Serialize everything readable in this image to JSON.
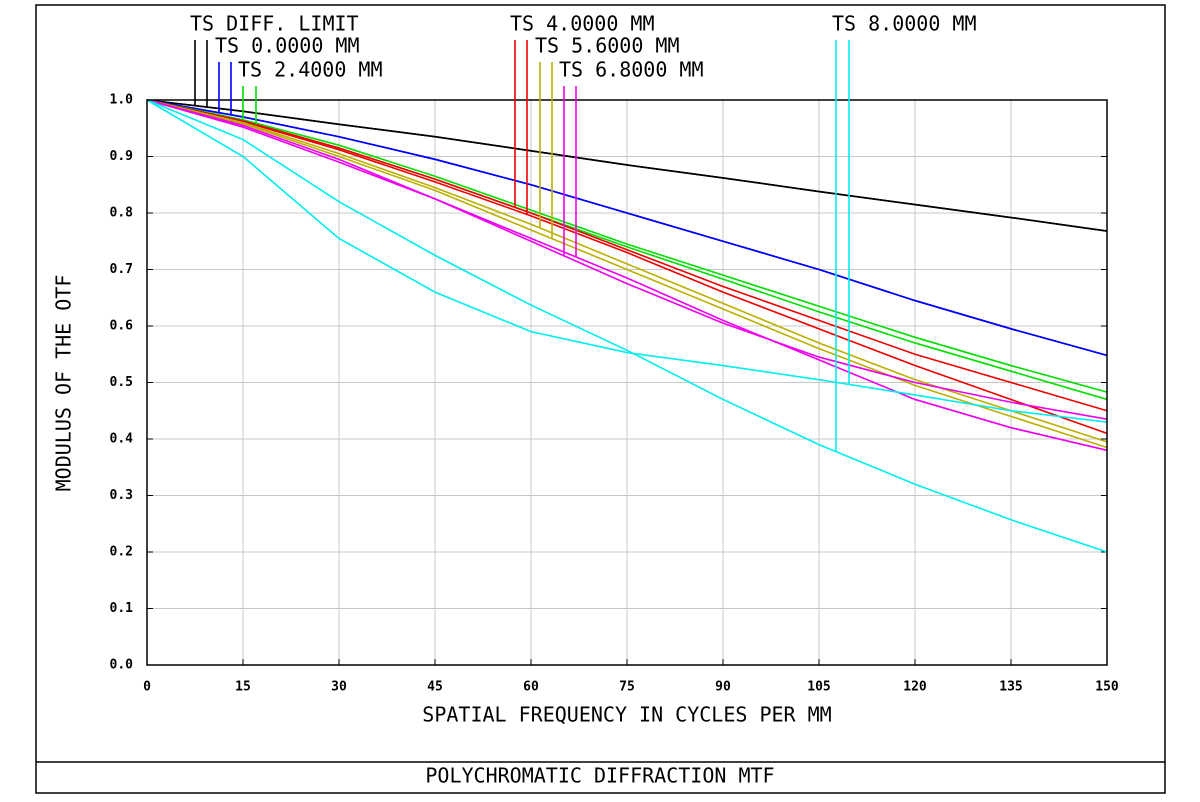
{
  "chart_data": {
    "type": "line",
    "title": "POLYCHROMATIC DIFFRACTION MTF",
    "x_label": "SPATIAL FREQUENCY IN CYCLES PER MM",
    "y_label": "MODULUS OF THE OTF",
    "x": [
      0,
      15,
      30,
      45,
      60,
      75,
      90,
      105,
      120,
      135,
      150
    ],
    "xlim": [
      0,
      150
    ],
    "xticks": [
      0,
      15,
      30,
      45,
      60,
      75,
      90,
      105,
      120,
      135,
      150
    ],
    "ylim": [
      0,
      1
    ],
    "yticks": [
      {
        "value": 0,
        "label": "0.0"
      },
      0.1,
      0.2,
      0.3,
      0.4,
      0.5,
      0.6,
      0.7,
      0.8,
      0.9,
      {
        "value": 1,
        "label": "1.0"
      }
    ],
    "grid": true,
    "series": [
      {
        "name": "TS DIFF. LIMIT",
        "color": "#000000",
        "tangential": [
          1,
          0.98,
          0.957,
          0.935,
          0.91,
          0.885,
          0.862,
          0.838,
          0.815,
          0.792,
          0.768
        ],
        "sagittal": [
          1,
          0.98,
          0.957,
          0.935,
          0.91,
          0.885,
          0.862,
          0.838,
          0.815,
          0.792,
          0.768
        ]
      },
      {
        "name": "TS 0.0000 MM",
        "color": "#0000ff",
        "tangential": [
          1,
          0.97,
          0.935,
          0.895,
          0.85,
          0.8,
          0.75,
          0.7,
          0.645,
          0.595,
          0.548
        ],
        "sagittal": [
          1,
          0.97,
          0.935,
          0.895,
          0.85,
          0.8,
          0.75,
          0.7,
          0.645,
          0.595,
          0.548
        ]
      },
      {
        "name": "TS 2.4000 MM",
        "color": "#00dd00",
        "tangential": [
          1,
          0.965,
          0.92,
          0.865,
          0.805,
          0.745,
          0.69,
          0.635,
          0.58,
          0.53,
          0.483
        ],
        "sagittal": [
          1,
          0.963,
          0.915,
          0.86,
          0.8,
          0.74,
          0.683,
          0.625,
          0.57,
          0.52,
          0.47
        ]
      },
      {
        "name": "TS 4.0000 MM",
        "color": "#ee0000",
        "tangential": [
          1,
          0.963,
          0.915,
          0.86,
          0.8,
          0.735,
          0.67,
          0.61,
          0.55,
          0.5,
          0.45
        ],
        "sagittal": [
          1,
          0.962,
          0.912,
          0.855,
          0.795,
          0.73,
          0.66,
          0.595,
          0.53,
          0.47,
          0.41
        ]
      },
      {
        "name": "TS 5.6000 MM",
        "color": "#bbb000",
        "tangential": [
          1,
          0.96,
          0.905,
          0.845,
          0.78,
          0.71,
          0.64,
          0.57,
          0.505,
          0.45,
          0.395
        ],
        "sagittal": [
          1,
          0.958,
          0.9,
          0.84,
          0.77,
          0.7,
          0.63,
          0.56,
          0.495,
          0.44,
          0.385
        ]
      },
      {
        "name": "TS 6.8000 MM",
        "color": "#ee00ee",
        "tangential": [
          1,
          0.955,
          0.895,
          0.825,
          0.75,
          0.675,
          0.605,
          0.545,
          0.5,
          0.465,
          0.435
        ],
        "sagittal": [
          1,
          0.952,
          0.89,
          0.825,
          0.755,
          0.685,
          0.61,
          0.54,
          0.47,
          0.42,
          0.38
        ]
      },
      {
        "name": "TS 8.0000 MM",
        "color": "#00eeee",
        "tangential": [
          1,
          0.93,
          0.82,
          0.725,
          0.637,
          0.557,
          0.47,
          0.39,
          0.32,
          0.257,
          0.2
        ],
        "sagittal": [
          1,
          0.9,
          0.755,
          0.66,
          0.59,
          0.553,
          0.53,
          0.505,
          0.478,
          0.45,
          0.43
        ]
      }
    ]
  }
}
